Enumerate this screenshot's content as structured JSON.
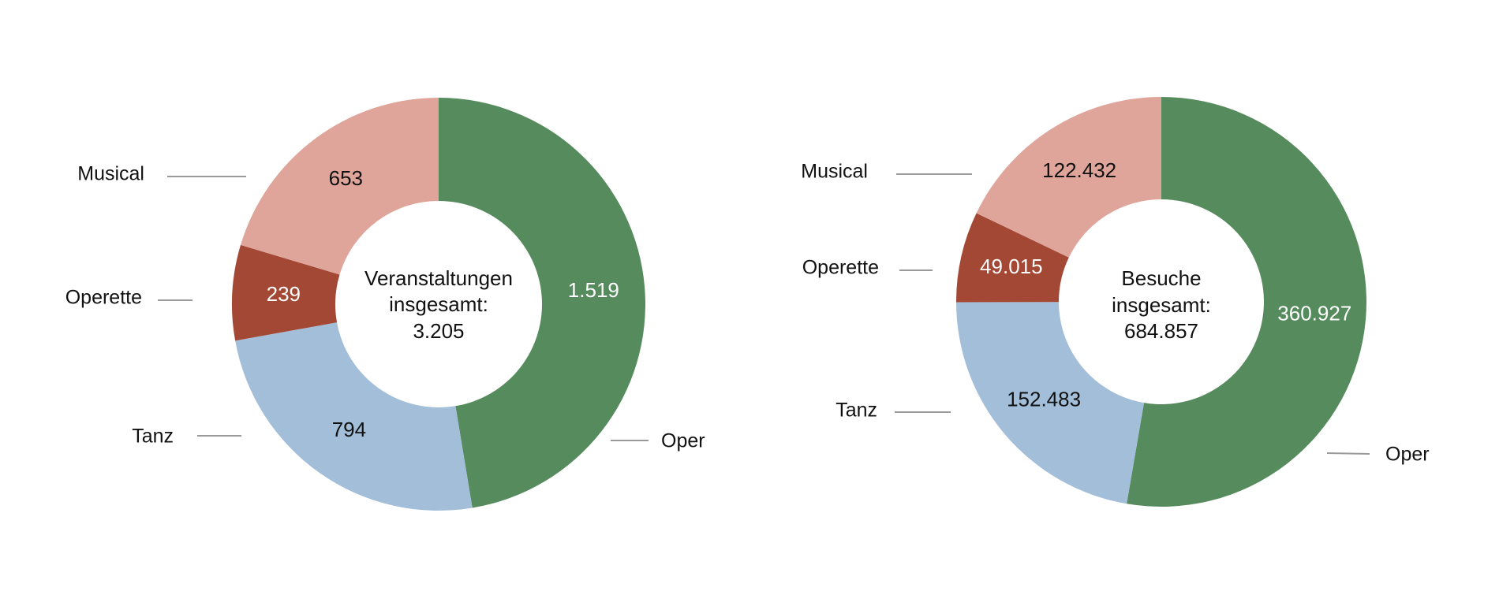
{
  "chart_data": [
    {
      "type": "pie",
      "variant": "donut",
      "center_text": [
        "Veranstaltungen",
        "insgesamt:",
        "3.205"
      ],
      "total": 3205,
      "categories": [
        "Oper",
        "Tanz",
        "Operette",
        "Musical"
      ],
      "values": [
        1519,
        794,
        239,
        653
      ],
      "value_labels": [
        "1.519",
        "794",
        "239",
        "653"
      ],
      "colors": [
        "#568b5d",
        "#a3bed9",
        "#a24834",
        "#e0a59a"
      ],
      "label_colors": [
        "#ffffff",
        "#111111",
        "#ffffff",
        "#111111"
      ],
      "start_angle": "top, clockwise"
    },
    {
      "type": "pie",
      "variant": "donut",
      "center_text": [
        "Besuche",
        "insgesamt:",
        "684.857"
      ],
      "total": 684857,
      "categories": [
        "Oper",
        "Tanz",
        "Operette",
        "Musical"
      ],
      "values": [
        360927,
        152483,
        49015,
        122432
      ],
      "value_labels": [
        "360.927",
        "152.483",
        "49.015",
        "122.432"
      ],
      "colors": [
        "#568b5d",
        "#a3bed9",
        "#a24834",
        "#e0a59a"
      ],
      "label_colors": [
        "#ffffff",
        "#111111",
        "#ffffff",
        "#111111"
      ],
      "start_angle": "top, clockwise"
    }
  ]
}
